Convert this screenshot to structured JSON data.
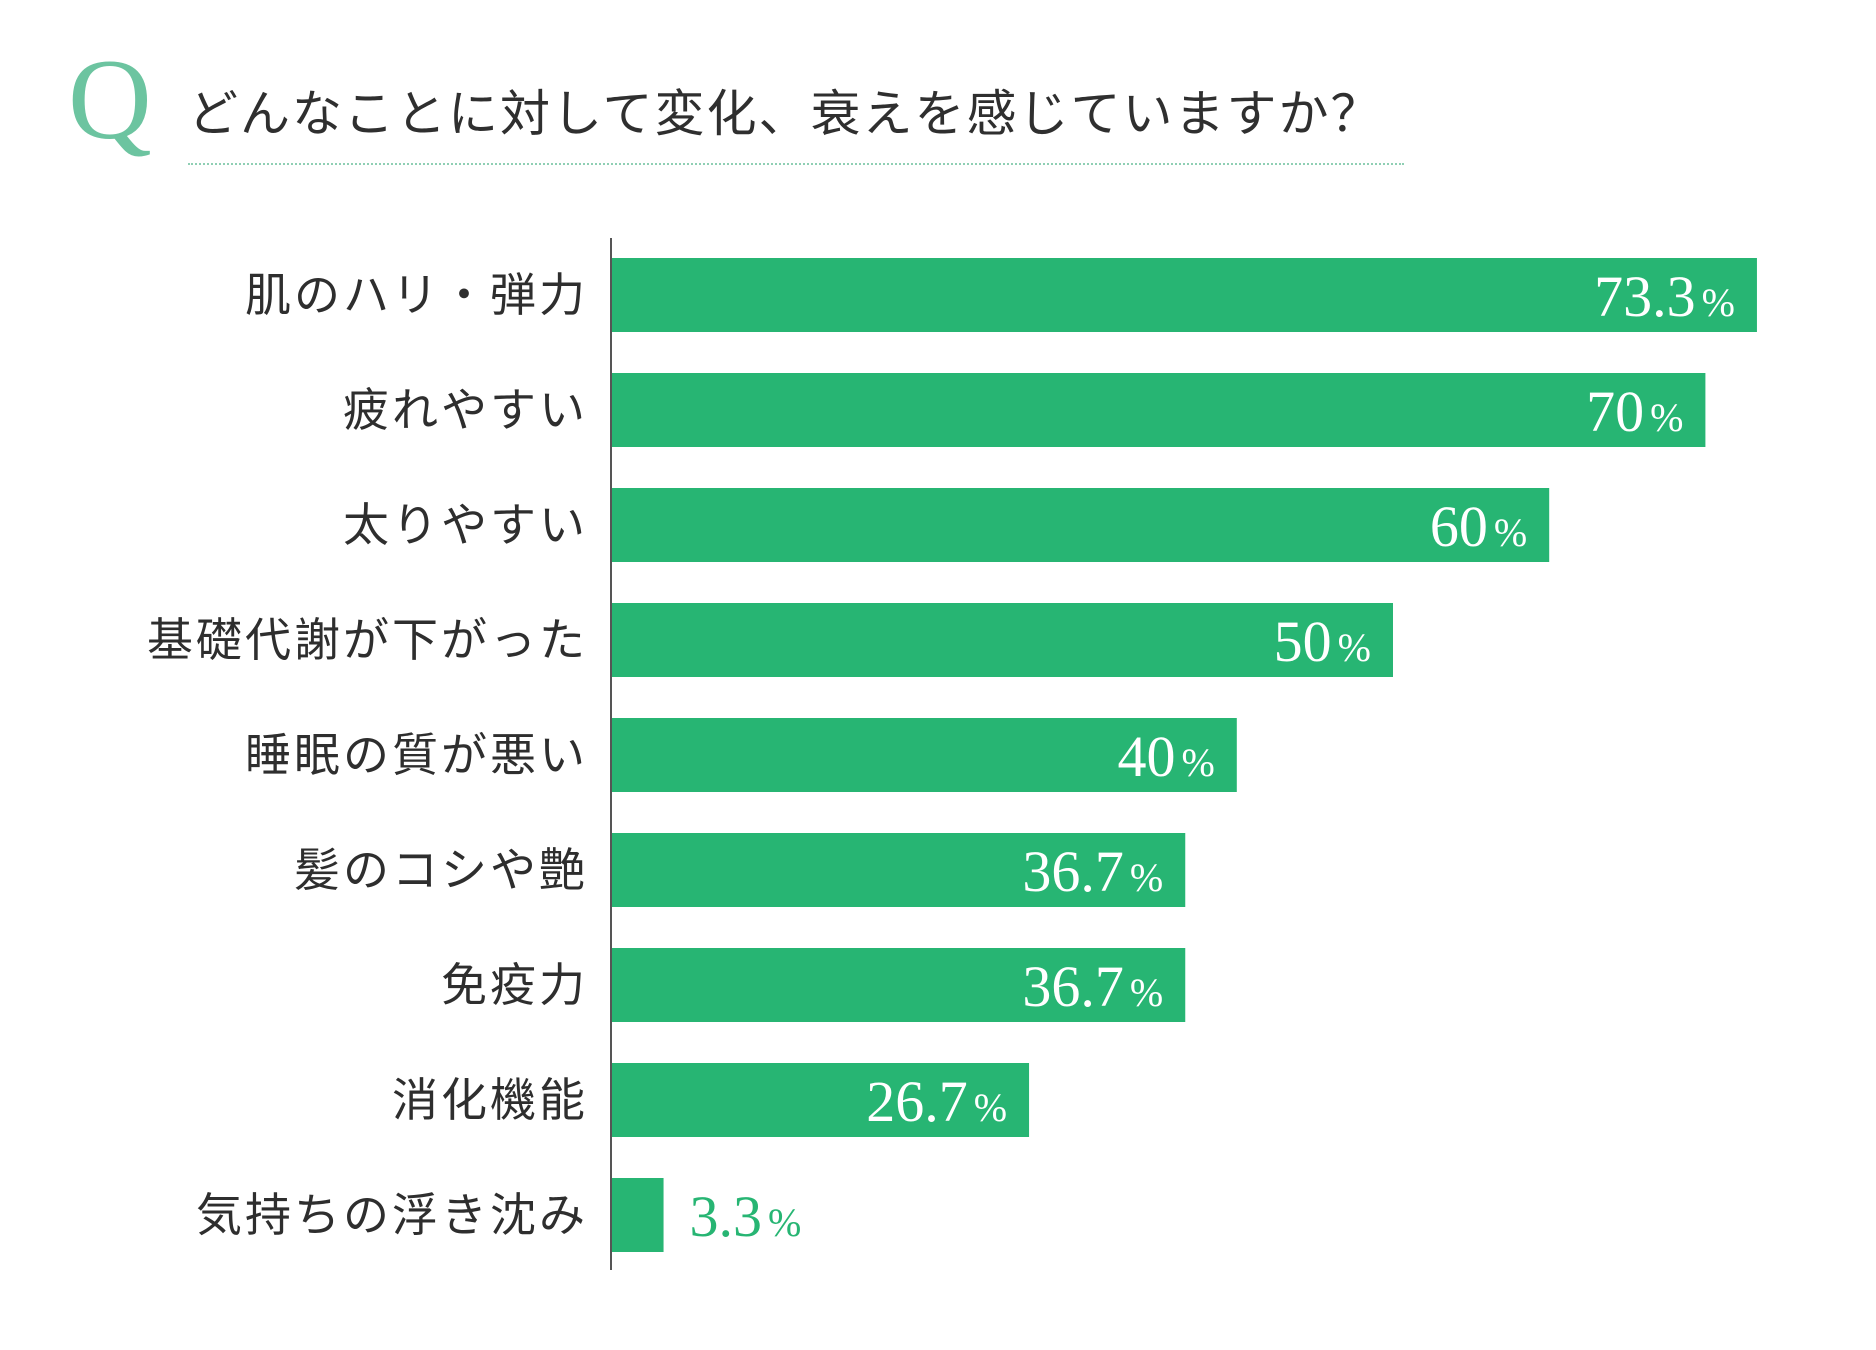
{
  "header": {
    "q_mark": "Q",
    "title": "どんなことに対して変化、衰えを感じていますか？"
  },
  "colors": {
    "bar": "#27b573",
    "q_mark": "#6cc4a0",
    "rule": "#8fcfb4",
    "label_inside": "#ffffff",
    "label_outside": "#27b573",
    "axis": "#555555"
  },
  "chart_data": {
    "type": "bar",
    "orientation": "horizontal",
    "title": "どんなことに対して変化、衰えを感じていますか？",
    "categories": [
      "肌のハリ・弾力",
      "疲れやすい",
      "太りやすい",
      "基礎代謝が下がった",
      "睡眠の質が悪い",
      "髪のコシや艶",
      "免疫力",
      "消化機能",
      "気持ちの浮き沈み"
    ],
    "values": [
      73.3,
      70,
      60,
      50,
      40,
      36.7,
      36.7,
      26.7,
      3.3
    ],
    "value_labels": [
      "73.3",
      "70",
      "60",
      "50",
      "40",
      "36.7",
      "36.7",
      "26.7",
      "3.3"
    ],
    "unit": "%",
    "xlim": [
      0,
      100
    ],
    "grid": false,
    "legend": "none"
  }
}
